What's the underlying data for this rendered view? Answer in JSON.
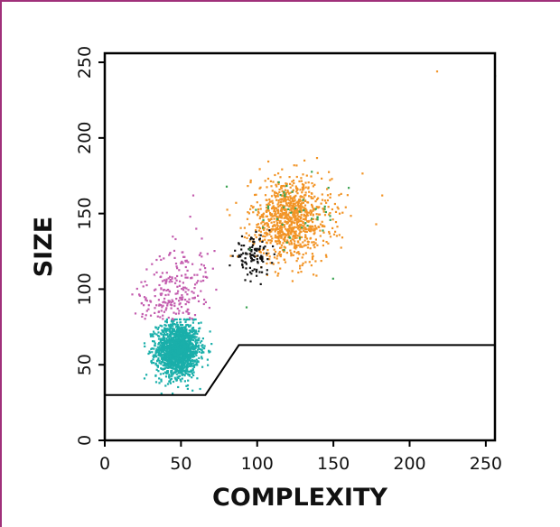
{
  "chart_data": {
    "type": "scatter",
    "title": "",
    "xlabel": "COMPLEXITY",
    "ylabel": "SIZE",
    "xlim": [
      0,
      256
    ],
    "ylim": [
      0,
      256
    ],
    "xticks": [
      0,
      50,
      100,
      150,
      200,
      250
    ],
    "yticks": [
      0,
      50,
      100,
      150,
      200,
      250
    ],
    "grid": false,
    "legend": "none",
    "colors": {
      "frame": "#a0307a",
      "axis": "#000000",
      "teal": "#1aafaa",
      "magenta": "#c35cae",
      "black": "#111111",
      "orange": "#f29426",
      "green": "#3aa352"
    },
    "clusters": [
      {
        "color": "teal",
        "center": [
          48,
          60
        ],
        "spread": [
          7,
          9
        ],
        "count": 1600
      },
      {
        "color": "magenta",
        "center": [
          45,
          100
        ],
        "spread": [
          11,
          14
        ],
        "count": 230
      },
      {
        "color": "black",
        "center": [
          97,
          122
        ],
        "spread": [
          6,
          6
        ],
        "count": 110
      },
      {
        "color": "orange",
        "center": [
          122,
          146
        ],
        "spread": [
          13,
          14
        ],
        "count": 950
      },
      {
        "color": "green",
        "center": [
          125,
          148
        ],
        "spread": [
          15,
          12
        ],
        "count": 45
      }
    ],
    "outliers": [
      {
        "x": 218,
        "y": 244,
        "color": "orange"
      },
      {
        "x": 256,
        "y": 241,
        "color": "green"
      },
      {
        "x": 182,
        "y": 162,
        "color": "orange"
      },
      {
        "x": 178,
        "y": 143,
        "color": "orange"
      },
      {
        "x": 160,
        "y": 167,
        "color": "green"
      },
      {
        "x": 155,
        "y": 163,
        "color": "orange"
      },
      {
        "x": 93,
        "y": 88,
        "color": "green"
      },
      {
        "x": 58,
        "y": 162,
        "color": "magenta"
      },
      {
        "x": 56,
        "y": 148,
        "color": "magenta"
      }
    ],
    "gate": {
      "points": [
        [
          0,
          30
        ],
        [
          66,
          30
        ],
        [
          88,
          63
        ],
        [
          256,
          63
        ]
      ]
    }
  }
}
